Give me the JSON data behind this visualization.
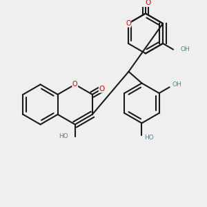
{
  "bg_color": "#efefef",
  "bond_color": "#1a1a1a",
  "bond_lw": 1.5,
  "O_color": "#cc0000",
  "H_color": "#4a8888",
  "fig_size": [
    3.0,
    3.0
  ],
  "dpi": 100,
  "xlim": [
    -0.5,
    2.8
  ],
  "ylim": [
    -1.0,
    2.8
  ]
}
